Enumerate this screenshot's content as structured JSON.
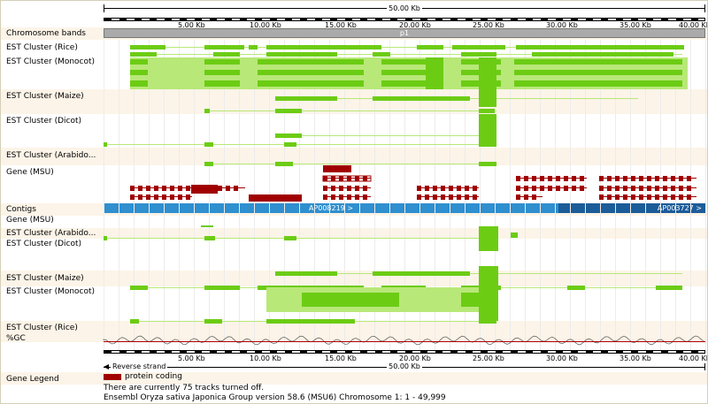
{
  "scale": {
    "length_label": "50.00 Kb",
    "tick_labels": [
      "5.00 Kb",
      "10.00 Kb",
      "15.00 Kb",
      "20.00 Kb",
      "25.00 Kb",
      "30.00 Kb",
      "35.00 Kb",
      "40.00 Kb"
    ],
    "chromosome_band_label": "p1"
  },
  "tracks_top": [
    "Chromosome bands",
    "EST Cluster (Rice)",
    "EST Cluster (Monocot)",
    "EST Cluster (Maize)",
    "EST Cluster (Dicot)",
    "EST Cluster (Arabido...",
    "Gene (MSU)"
  ],
  "tracks_bottom": [
    "Contigs",
    "Gene (MSU)",
    "EST Cluster (Arabido...",
    "EST Cluster (Dicot)",
    "EST Cluster (Maize)",
    "EST Cluster (Monocot)",
    "EST Cluster (Rice)",
    "%GC"
  ],
  "contigs": [
    {
      "label": "AP008219 >",
      "color": "#2f8fcf"
    },
    {
      "label": "AP003727 >",
      "color": "#1c5c99"
    }
  ],
  "strand": {
    "label": "Reverse strand",
    "length_label": "50.00 Kb"
  },
  "legend": {
    "title": "Gene Legend",
    "item": "protein coding",
    "item_color": "#a00000"
  },
  "status": {
    "tracks_off": "There are currently 75 tracks turned off.",
    "footer": "Ensembl Oryza sativa Japonica Group version 58.6 (MSU6) Chromosome 1: 1 - 49,999"
  },
  "colors": {
    "est": "#6ccc14",
    "est_light": "#b8e878",
    "gene": "#a00000",
    "band": "#fcf4e8",
    "gc_line": "#b00000"
  }
}
